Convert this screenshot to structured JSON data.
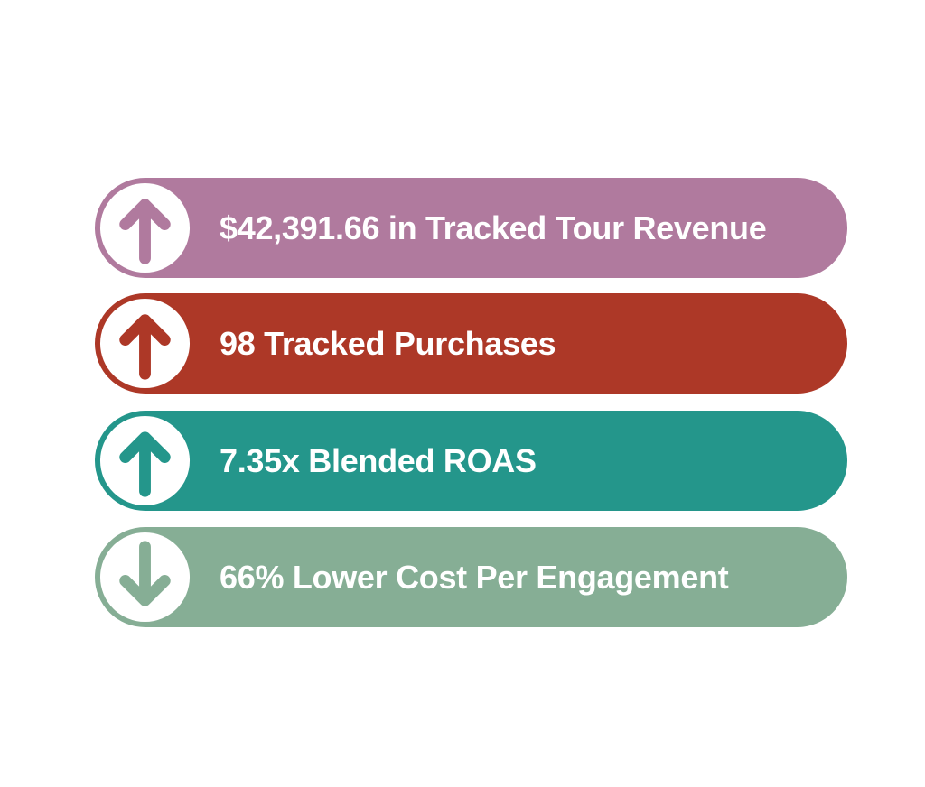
{
  "items": [
    {
      "text": "$42,391.66 in Tracked Tour Revenue"
    },
    {
      "text": "98 Tracked Purchases"
    },
    {
      "text": "7.35x Blended ROAS"
    },
    {
      "text": "66% Lower Cost Per Engagement"
    }
  ]
}
